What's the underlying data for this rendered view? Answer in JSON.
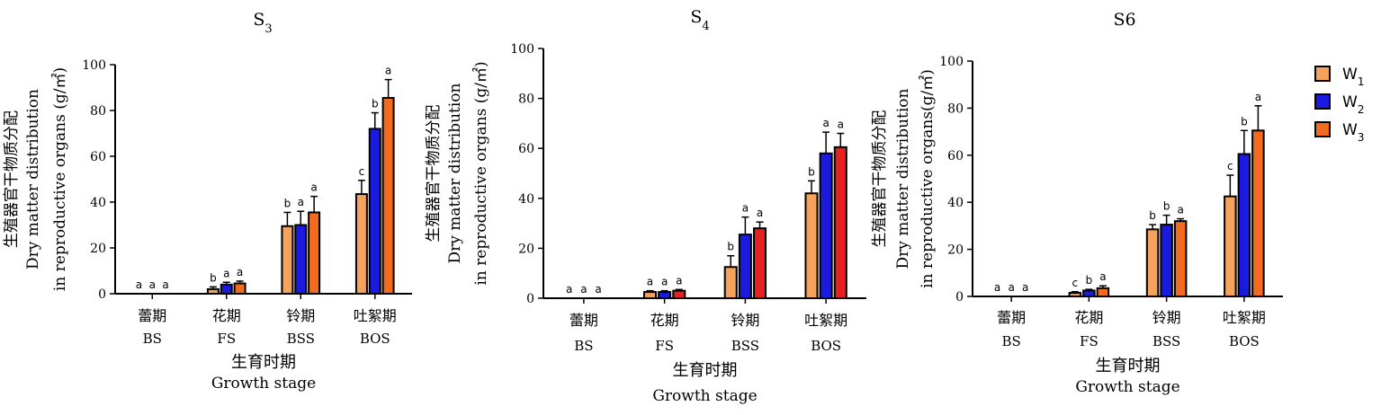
{
  "legend": [
    {
      "main": "W",
      "sub": "1",
      "color": "#F5A25D"
    },
    {
      "main": "W",
      "sub": "2",
      "color": "#1A1AE0"
    },
    {
      "main": "W",
      "sub": "3",
      "color": "#F26B21"
    }
  ],
  "chart_data": [
    {
      "type": "bar",
      "title": {
        "main": "S",
        "sub": "3"
      },
      "ylabel": [
        "生殖器官干物质分配",
        "Dry matter distribution",
        "in reproductive organs (g/㎡)"
      ],
      "xlabel": [
        "生育时期",
        "Growth stage"
      ],
      "categories_cn": [
        "蕾期",
        "花期",
        "铃期",
        "吐絮期"
      ],
      "categories": [
        "BS",
        "FS",
        "BSS",
        "BOS"
      ],
      "ylim": [
        0,
        100
      ],
      "yticks": [
        0,
        20,
        40,
        60,
        80,
        100
      ],
      "series": [
        {
          "name": "W1",
          "color": "#F5A25D",
          "values": [
            0,
            2,
            29.5,
            43.5
          ],
          "errors": [
            0,
            1,
            6,
            6
          ],
          "letters": [
            "a",
            "b",
            "b",
            "c"
          ]
        },
        {
          "name": "W2",
          "color": "#1A1AE0",
          "values": [
            0,
            4,
            30,
            72
          ],
          "errors": [
            0,
            1,
            6,
            7
          ],
          "letters": [
            "a",
            "a",
            "a",
            "b"
          ]
        },
        {
          "name": "W3",
          "color": "#F26B21",
          "values": [
            0,
            4.5,
            35.5,
            85.5
          ],
          "errors": [
            0,
            1,
            7,
            8
          ],
          "letters": [
            "a",
            "a",
            "a",
            "a"
          ]
        }
      ]
    },
    {
      "type": "bar",
      "title": {
        "main": "S",
        "sub": "4"
      },
      "ylabel": [
        "生殖器官干物质分配",
        "Dry matter distribution",
        "in reproductive organs (g/㎡)"
      ],
      "xlabel": [
        "生育时期",
        "Growth stage"
      ],
      "categories_cn": [
        "蕾期",
        "花期",
        "铃期",
        "吐絮期"
      ],
      "categories": [
        "BS",
        "FS",
        "BSS",
        "BOS"
      ],
      "ylim": [
        0,
        100
      ],
      "yticks": [
        0,
        20,
        40,
        60,
        80,
        100
      ],
      "series": [
        {
          "name": "W1",
          "color": "#F5A25D",
          "values": [
            0,
            2.5,
            12.5,
            42
          ],
          "errors": [
            0,
            0.5,
            4.5,
            5
          ],
          "letters": [
            "a",
            "a",
            "b",
            "b"
          ]
        },
        {
          "name": "W2",
          "color": "#1A1AE0",
          "values": [
            0,
            2.5,
            25.5,
            58
          ],
          "errors": [
            0,
            0.5,
            7,
            8.5
          ],
          "letters": [
            "a",
            "a",
            "a",
            "a"
          ]
        },
        {
          "name": "W3",
          "color": "#E8201F",
          "values": [
            0,
            3,
            28,
            60.5
          ],
          "errors": [
            0,
            0.5,
            2.5,
            5.5
          ],
          "letters": [
            "a",
            "a",
            "a",
            "a"
          ]
        }
      ]
    },
    {
      "type": "bar",
      "title": {
        "main": "S6",
        "sub": ""
      },
      "ylabel": [
        "生殖器官干物质分配",
        "Dry matter distribution",
        "in reproductive organs(g/㎡)"
      ],
      "xlabel": [
        "生育时期",
        "Growth stage"
      ],
      "categories_cn": [
        "蕾期",
        "花期",
        "铃期",
        "吐絮期"
      ],
      "categories": [
        "BS",
        "FS",
        "BSS",
        "BOS"
      ],
      "ylim": [
        0,
        100
      ],
      "yticks": [
        0,
        20,
        40,
        60,
        80,
        100
      ],
      "series": [
        {
          "name": "W1",
          "color": "#F5A25D",
          "values": [
            0,
            1.5,
            28.5,
            42.5
          ],
          "errors": [
            0,
            0.5,
            2,
            9
          ],
          "letters": [
            "a",
            "c",
            "b",
            "c"
          ]
        },
        {
          "name": "W2",
          "color": "#1A1AE0",
          "values": [
            0,
            2.5,
            30.5,
            60.5
          ],
          "errors": [
            0,
            0.5,
            4,
            10
          ],
          "letters": [
            "a",
            "b",
            "b",
            "b"
          ]
        },
        {
          "name": "W3",
          "color": "#F26B21",
          "values": [
            0,
            3.5,
            32,
            70.5
          ],
          "errors": [
            0,
            1,
            1,
            10.5
          ],
          "letters": [
            "a",
            "a",
            "a",
            "a"
          ]
        }
      ]
    }
  ]
}
